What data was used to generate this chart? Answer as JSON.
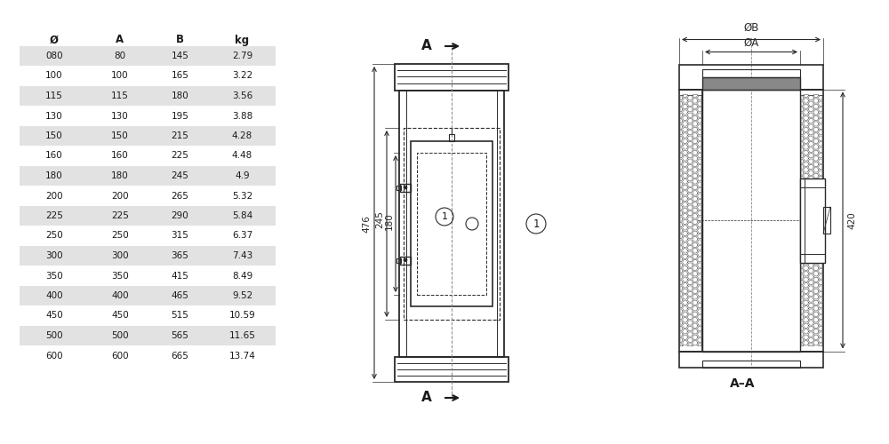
{
  "table_headers": [
    "Ø",
    "A",
    "B",
    "kg"
  ],
  "table_rows": [
    [
      "080",
      "80",
      "145",
      "2.79"
    ],
    [
      "100",
      "100",
      "165",
      "3.22"
    ],
    [
      "115",
      "115",
      "180",
      "3.56"
    ],
    [
      "130",
      "130",
      "195",
      "3.88"
    ],
    [
      "150",
      "150",
      "215",
      "4.28"
    ],
    [
      "160",
      "160",
      "225",
      "4.48"
    ],
    [
      "180",
      "180",
      "245",
      "4.9"
    ],
    [
      "200",
      "200",
      "265",
      "5.32"
    ],
    [
      "225",
      "225",
      "290",
      "5.84"
    ],
    [
      "250",
      "250",
      "315",
      "6.37"
    ],
    [
      "300",
      "300",
      "365",
      "7.43"
    ],
    [
      "350",
      "350",
      "415",
      "8.49"
    ],
    [
      "400",
      "400",
      "465",
      "9.52"
    ],
    [
      "450",
      "450",
      "515",
      "10.59"
    ],
    [
      "500",
      "500",
      "565",
      "11.65"
    ],
    [
      "600",
      "600",
      "665",
      "13.74"
    ]
  ],
  "shaded_rows": [
    0,
    2,
    4,
    6,
    8,
    10,
    12,
    14
  ],
  "row_shade_color": "#e2e2e2",
  "bg_color": "#ffffff",
  "line_color": "#2a2a2a",
  "dim_color": "#2a2a2a",
  "text_color": "#1a1a1a",
  "font_size": 7.5,
  "header_font_size": 8.5
}
